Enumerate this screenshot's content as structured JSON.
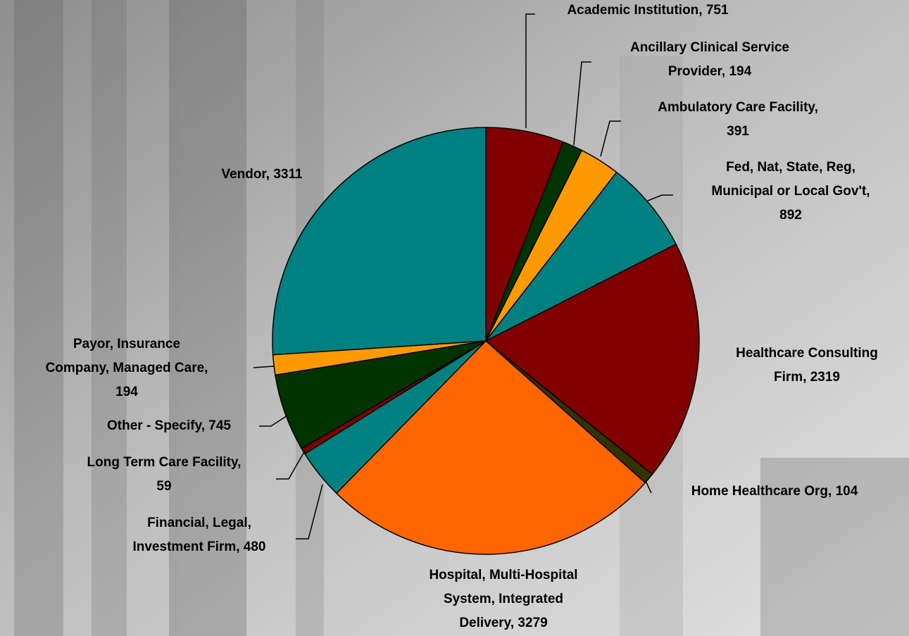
{
  "chart_data": {
    "type": "pie",
    "values": [
      751,
      194,
      391,
      892,
      2319,
      104,
      3279,
      480,
      59,
      745,
      194,
      3311
    ],
    "value_labels": [
      "Academic Institution, 751",
      "Ancillary Clinical Service\nProvider, 194",
      "Ambulatory Care Facility,\n391",
      "Fed, Nat, State, Reg,\nMunicipal or Local Gov't,\n892",
      "Healthcare Consulting\nFirm, 2319",
      "Home Healthcare Org, 104",
      "Hospital, Multi-Hospital\nSystem, Integrated\nDelivery, 3279",
      "Financial, Legal,\nInvestment Firm, 480",
      "Long Term Care Facility,\n59",
      "Other - Specify, 745",
      "Payor, Insurance\nCompany, Managed Care,\n194",
      "Vendor, 3311"
    ],
    "colors": [
      "#800000",
      "#003300",
      "#ff9900",
      "#008080",
      "#800000",
      "#333300",
      "#ff6600",
      "#008080",
      "#800000",
      "#003300",
      "#ff9900",
      "#008080"
    ]
  }
}
